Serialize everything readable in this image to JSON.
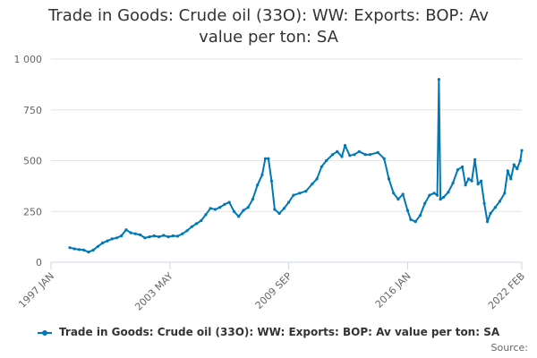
{
  "chart_data": {
    "type": "line",
    "title_lines": [
      "Trade in Goods: Crude oil (33O): WW: Exports: BOP: Av",
      "value per ton: SA"
    ],
    "series": [
      {
        "name": "Trade in Goods: Crude oil (33O): WW: Exports: BOP: Av value per ton: SA",
        "color": "#0077b6",
        "points": [
          [
            "1998-01",
            72
          ],
          [
            "1998-04",
            66
          ],
          [
            "1998-07",
            62
          ],
          [
            "1998-10",
            60
          ],
          [
            "1999-01",
            50
          ],
          [
            "1999-04",
            60
          ],
          [
            "1999-07",
            78
          ],
          [
            "1999-10",
            95
          ],
          [
            "2000-01",
            105
          ],
          [
            "2000-04",
            115
          ],
          [
            "2000-07",
            120
          ],
          [
            "2000-10",
            130
          ],
          [
            "2001-01",
            160
          ],
          [
            "2001-04",
            145
          ],
          [
            "2001-07",
            140
          ],
          [
            "2001-10",
            135
          ],
          [
            "2002-01",
            120
          ],
          [
            "2002-04",
            125
          ],
          [
            "2002-07",
            130
          ],
          [
            "2002-10",
            125
          ],
          [
            "2003-01",
            132
          ],
          [
            "2003-04",
            125
          ],
          [
            "2003-07",
            130
          ],
          [
            "2003-10",
            128
          ],
          [
            "2004-01",
            140
          ],
          [
            "2004-04",
            155
          ],
          [
            "2004-07",
            175
          ],
          [
            "2004-10",
            190
          ],
          [
            "2005-01",
            205
          ],
          [
            "2005-04",
            235
          ],
          [
            "2005-07",
            265
          ],
          [
            "2005-10",
            260
          ],
          [
            "2006-01",
            270
          ],
          [
            "2006-04",
            285
          ],
          [
            "2006-07",
            295
          ],
          [
            "2006-10",
            250
          ],
          [
            "2007-01",
            225
          ],
          [
            "2007-04",
            255
          ],
          [
            "2007-07",
            270
          ],
          [
            "2007-10",
            310
          ],
          [
            "2008-01",
            380
          ],
          [
            "2008-04",
            430
          ],
          [
            "2008-06",
            510
          ],
          [
            "2008-08",
            510
          ],
          [
            "2008-10",
            400
          ],
          [
            "2008-12",
            260
          ],
          [
            "2009-03",
            240
          ],
          [
            "2009-06",
            265
          ],
          [
            "2009-09",
            295
          ],
          [
            "2009-12",
            330
          ],
          [
            "2010-04",
            340
          ],
          [
            "2010-08",
            350
          ],
          [
            "2010-12",
            385
          ],
          [
            "2011-03",
            410
          ],
          [
            "2011-06",
            470
          ],
          [
            "2011-09",
            500
          ],
          [
            "2012-01",
            530
          ],
          [
            "2012-04",
            545
          ],
          [
            "2012-07",
            520
          ],
          [
            "2012-09",
            575
          ],
          [
            "2012-12",
            525
          ],
          [
            "2013-03",
            530
          ],
          [
            "2013-06",
            545
          ],
          [
            "2013-10",
            530
          ],
          [
            "2014-01",
            530
          ],
          [
            "2014-06",
            540
          ],
          [
            "2014-10",
            510
          ],
          [
            "2015-01",
            410
          ],
          [
            "2015-04",
            340
          ],
          [
            "2015-07",
            310
          ],
          [
            "2015-10",
            335
          ],
          [
            "2016-01",
            255
          ],
          [
            "2016-03",
            210
          ],
          [
            "2016-06",
            200
          ],
          [
            "2016-09",
            230
          ],
          [
            "2016-12",
            290
          ],
          [
            "2017-03",
            330
          ],
          [
            "2017-06",
            340
          ],
          [
            "2017-08",
            330
          ],
          [
            "2017-09",
            900
          ],
          [
            "2017-10",
            310
          ],
          [
            "2017-12",
            320
          ],
          [
            "2018-03",
            345
          ],
          [
            "2018-06",
            390
          ],
          [
            "2018-09",
            455
          ],
          [
            "2018-12",
            470
          ],
          [
            "2019-02",
            380
          ],
          [
            "2019-04",
            410
          ],
          [
            "2019-06",
            400
          ],
          [
            "2019-08",
            505
          ],
          [
            "2019-10",
            385
          ],
          [
            "2019-12",
            400
          ],
          [
            "2020-02",
            290
          ],
          [
            "2020-04",
            200
          ],
          [
            "2020-06",
            240
          ],
          [
            "2020-09",
            270
          ],
          [
            "2020-12",
            300
          ],
          [
            "2021-03",
            340
          ],
          [
            "2021-05",
            450
          ],
          [
            "2021-07",
            410
          ],
          [
            "2021-09",
            480
          ],
          [
            "2021-11",
            460
          ],
          [
            "2022-01",
            500
          ],
          [
            "2022-02",
            550
          ]
        ]
      }
    ],
    "x_ticks": [
      {
        "date": "1997-01",
        "label": "1997 JAN"
      },
      {
        "date": "2003-05",
        "label": "2003 MAY"
      },
      {
        "date": "2009-09",
        "label": "2009 SEP"
      },
      {
        "date": "2016-01",
        "label": "2016 JAN"
      },
      {
        "date": "2022-02",
        "label": "2022 FEB"
      }
    ],
    "x_range": [
      "1997-01",
      "2022-02"
    ],
    "y_ticks": [
      {
        "value": 0,
        "label": "0"
      },
      {
        "value": 250,
        "label": "250"
      },
      {
        "value": 500,
        "label": "500"
      },
      {
        "value": 750,
        "label": "750"
      },
      {
        "value": 1000,
        "label": "1 000"
      }
    ],
    "ylim": [
      0,
      1000
    ],
    "grid": true,
    "legend_position": "bottom-center",
    "source_label": "Source:"
  }
}
